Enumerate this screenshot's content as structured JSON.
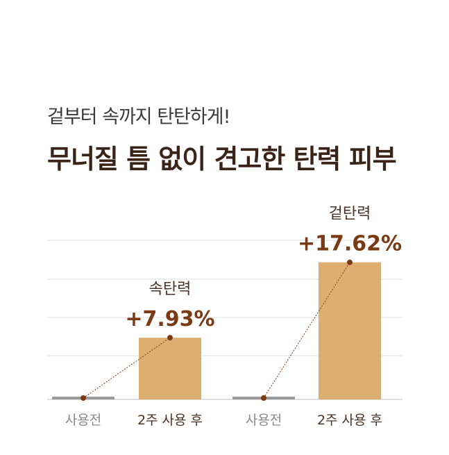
{
  "header": {
    "subtitle": "겉부터 속까지 탄탄하게!",
    "title": "무너질 틈 없이 견고한 탄력 피부"
  },
  "colors": {
    "bar_after": "#dcae6f",
    "bar_before": "#9a9a9a",
    "line_marker": "#7a3a14",
    "grid": "#e0e0e0",
    "label_before": "#8a8a8a",
    "label_after": "#4a3226"
  },
  "chart_data": {
    "type": "bar",
    "grid": true,
    "groups": [
      {
        "name": "속탄력",
        "value_label": "+7.93%",
        "categories": [
          "사용전",
          "2주 사용 후"
        ],
        "values": [
          0,
          7.93
        ]
      },
      {
        "name": "겉탄력",
        "value_label": "+17.62%",
        "categories": [
          "사용전",
          "2주 사용 후"
        ],
        "values": [
          0,
          17.62
        ]
      }
    ]
  }
}
